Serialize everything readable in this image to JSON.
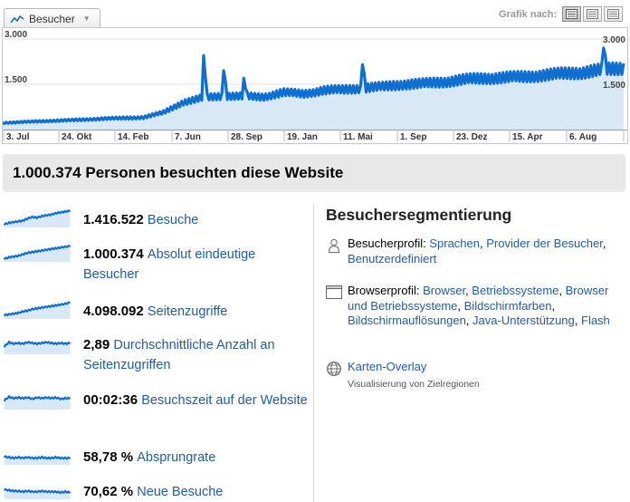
{
  "metric_selector": {
    "label": "Besucher"
  },
  "graph_view": {
    "label": "Grafik nach:"
  },
  "chart_data": {
    "type": "area",
    "title": "",
    "xlabel": "",
    "ylabel": "",
    "x_tick_labels": [
      "3. Jul",
      "24. Okt",
      "14. Feb",
      "7. Jun",
      "28. Sep",
      "19. Jan",
      "11. Mai",
      "1. Sep",
      "23. Dez",
      "15. Apr",
      "6. Aug"
    ],
    "y_tick_labels": [
      "3.000",
      "1.500"
    ],
    "ylim": [
      0,
      3000
    ],
    "grid": true,
    "series": [
      {
        "name": "Besucher",
        "color": "#0f6fd1",
        "values": [
          220,
          250,
          280,
          300,
          330,
          360,
          380,
          400,
          560,
          900,
          1050,
          1120,
          1100,
          1080,
          1230,
          1180,
          1300,
          1320,
          1380,
          1420,
          1500,
          1520,
          1580,
          1650,
          1700,
          1720,
          1750,
          1800,
          1850,
          1900,
          1980,
          2050
        ]
      }
    ],
    "spikes": [
      {
        "index": 10,
        "value": 2450
      },
      {
        "index": 11,
        "value": 1950
      },
      {
        "index": 12,
        "value": 1700
      },
      {
        "index": 18,
        "value": 2150
      },
      {
        "index": 30,
        "value": 2700
      }
    ]
  },
  "headline": "1.000.374 Personen besuchten diese Website",
  "stats": [
    {
      "value": "1.416.522",
      "label": "Besuche",
      "spark": [
        4,
        6,
        7,
        8,
        9,
        12,
        14,
        13,
        15,
        16,
        17,
        19,
        20,
        21,
        22
      ]
    },
    {
      "value": "1.000.374",
      "label": "Absolut eindeutige Besucher",
      "spark": [
        4,
        6,
        7,
        8,
        10,
        12,
        13,
        14,
        15,
        16,
        17,
        18,
        19,
        20,
        21
      ]
    },
    {
      "value": "4.098.092",
      "label": "Seitenzugriffe",
      "spark": [
        5,
        6,
        7,
        8,
        10,
        11,
        13,
        14,
        15,
        16,
        17,
        18,
        19,
        20,
        22
      ]
    },
    {
      "value": "2,89",
      "label": "Durchschnittliche Anzahl an Seitenzugriffen",
      "spark": [
        10,
        16,
        14,
        15,
        14,
        16,
        15,
        14,
        15,
        16,
        15,
        14,
        15,
        14,
        15
      ]
    },
    {
      "value": "00:02:36",
      "label": "Besuchszeit auf der Website",
      "spark": [
        12,
        17,
        15,
        16,
        15,
        16,
        14,
        16,
        15,
        16,
        15,
        16,
        14,
        15,
        15
      ]
    },
    {
      "value": "58,78 %",
      "label": "Absprungrate",
      "spark": [
        11,
        10,
        9,
        10,
        9,
        10,
        9,
        9,
        10,
        9,
        9,
        10,
        9,
        9,
        9
      ]
    },
    {
      "value": "70,62 %",
      "label": "Neue Besuche",
      "spark": [
        13,
        12,
        11,
        11,
        10,
        11,
        10,
        10,
        11,
        10,
        10,
        10,
        9,
        10,
        9
      ]
    }
  ],
  "segmentation": {
    "title": "Besuchersegmentierung",
    "visitor_profile": {
      "label": "Besucherprofil:",
      "icon": "person-icon",
      "links": [
        "Sprachen",
        "Provider der Besucher",
        "Benutzerdefiniert"
      ]
    },
    "browser_profile": {
      "label": "Browserprofil:",
      "icon": "window-icon",
      "links": [
        "Browser",
        "Betriebssysteme",
        "Browser und Betriebssysteme",
        "Bildschirmfarben",
        "Bildschirmauflösungen",
        "Java-Unterstützung",
        "Flash"
      ]
    },
    "map_overlay": {
      "icon": "globe-icon",
      "label": "Karten-Overlay",
      "description": "Visualisierung von Zielregionen"
    }
  },
  "colors": {
    "line": "#0f6fd1",
    "fill": "#d8e8f7",
    "link": "#1f5da5"
  }
}
